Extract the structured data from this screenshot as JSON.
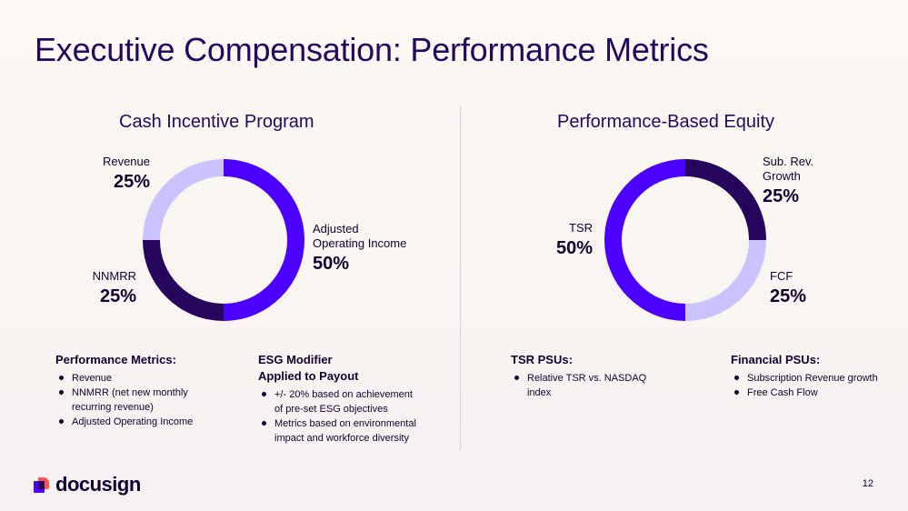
{
  "slide": {
    "title": "Executive Compensation: Performance Metrics",
    "page_number": "12",
    "brand": "docusign"
  },
  "colors": {
    "purple": "#4c00ff",
    "dark": "#26065d",
    "lavender": "#cbc2ff"
  },
  "chart_data": [
    {
      "type": "pie",
      "donut": true,
      "title": "Cash Incentive Program",
      "slices": [
        {
          "label": "Adjusted Operating Income",
          "value": 50,
          "display": "50%",
          "color": "#4c00ff"
        },
        {
          "label": "NNMRR",
          "value": 25,
          "display": "25%",
          "color": "#26065d"
        },
        {
          "label": "Revenue",
          "value": 25,
          "display": "25%",
          "color": "#cbc2ff"
        }
      ]
    },
    {
      "type": "pie",
      "donut": true,
      "title": "Performance-Based Equity",
      "slices": [
        {
          "label": "Sub. Rev. Growth",
          "value": 25,
          "display": "25%",
          "color": "#26065d"
        },
        {
          "label": "FCF",
          "value": 25,
          "display": "25%",
          "color": "#cbc2ff"
        },
        {
          "label": "TSR",
          "value": 50,
          "display": "50%",
          "color": "#4c00ff"
        }
      ]
    }
  ],
  "labels": {
    "aoi_line1": "Adjusted",
    "aoi_line2": "Operating Income",
    "sub_line1": "Sub. Rev.",
    "sub_line2": "Growth"
  },
  "blocks": {
    "performance_metrics": {
      "heading": "Performance Metrics:",
      "items": [
        "Revenue",
        "NNMRR (net new monthly",
        "recurring revenue)",
        "Adjusted Operating Income"
      ]
    },
    "esg": {
      "heading1": "ESG Modifier",
      "heading2": "Applied to Payout",
      "items": [
        "+/- 20% based on achievement",
        "of pre-set ESG objectives",
        "Metrics based on environmental",
        "impact and workforce diversity"
      ]
    },
    "tsr_psus": {
      "heading": "TSR PSUs:",
      "items": [
        "Relative TSR vs. NASDAQ",
        "index"
      ]
    },
    "financial_psus": {
      "heading": "Financial PSUs:",
      "items": [
        "Subscription Revenue growth",
        "Free Cash Flow"
      ]
    }
  }
}
